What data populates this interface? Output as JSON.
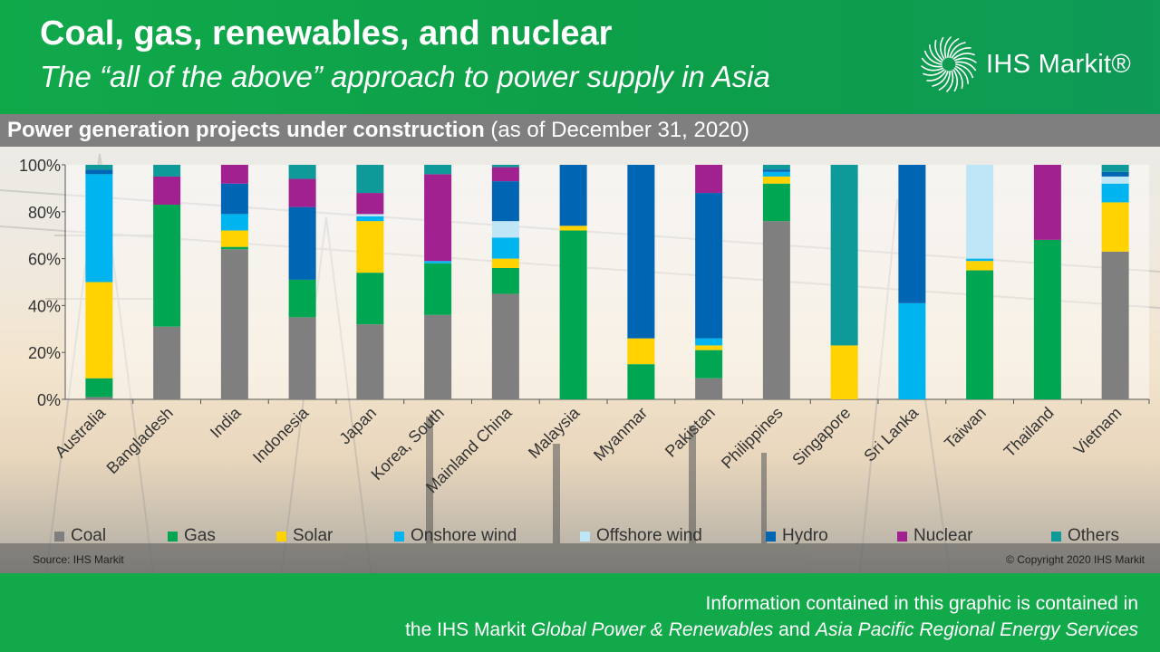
{
  "header": {
    "title": "Coal, gas, renewables, and nuclear",
    "subtitle": "The “all of the above” approach to power supply in Asia",
    "logo_text": "IHS Markit®"
  },
  "band": {
    "title_bold": "Power generation projects under construction",
    "title_rest": "(as of December 31, 2020)"
  },
  "chart_data": {
    "type": "bar",
    "stacked": true,
    "categories": [
      "Australia",
      "Bangladesh",
      "India",
      "Indonesia",
      "Japan",
      "Korea, South",
      "Mainland China",
      "Malaysia",
      "Myanmar",
      "Pakistan",
      "Philippines",
      "Singapore",
      "Sri Lanka",
      "Taiwan",
      "Thailand",
      "Vietnam"
    ],
    "series": [
      {
        "name": "Coal",
        "color": "#7f7f7f",
        "values": [
          1,
          31,
          64,
          35,
          32,
          36,
          45,
          0,
          0,
          9,
          76,
          0,
          0,
          0,
          0,
          63
        ]
      },
      {
        "name": "Gas",
        "color": "#00a651",
        "values": [
          8,
          52,
          1,
          16,
          22,
          22,
          11,
          72,
          15,
          12,
          16,
          0,
          0,
          55,
          68,
          0
        ]
      },
      {
        "name": "Solar",
        "color": "#ffd200",
        "values": [
          41,
          0,
          7,
          0,
          22,
          0,
          4,
          2,
          11,
          2,
          3,
          23,
          0,
          4,
          0,
          21
        ]
      },
      {
        "name": "Onshore wind",
        "color": "#00b5ef",
        "values": [
          46,
          0,
          7,
          0,
          2,
          1,
          9,
          0,
          0,
          3,
          2,
          0,
          41,
          1,
          0,
          8
        ]
      },
      {
        "name": "Offshore wind",
        "color": "#bfe6f7",
        "values": [
          0,
          0,
          0,
          0,
          1,
          0,
          7,
          0,
          0,
          0,
          0,
          0,
          0,
          40,
          0,
          3
        ]
      },
      {
        "name": "Hydro",
        "color": "#0066b3",
        "values": [
          2,
          0,
          13,
          31,
          0,
          0,
          17,
          26,
          74,
          62,
          1,
          0,
          59,
          0,
          0,
          2
        ]
      },
      {
        "name": "Nuclear",
        "color": "#a0218f",
        "values": [
          0,
          12,
          8,
          12,
          9,
          37,
          6,
          0,
          0,
          12,
          0,
          0,
          0,
          0,
          32,
          0
        ]
      },
      {
        "name": "Others",
        "color": "#0f9a9a",
        "values": [
          2,
          5,
          0,
          6,
          12,
          4,
          1,
          0,
          0,
          0,
          2,
          77,
          0,
          0,
          0,
          3
        ]
      }
    ],
    "y_ticks": [
      "0%",
      "20%",
      "40%",
      "60%",
      "80%",
      "100%"
    ],
    "ylim": [
      0,
      100
    ],
    "legend_position": "bottom"
  },
  "source": "Source: IHS Markit",
  "copyright": "© Copyright  2020 IHS Markit",
  "footer": {
    "line1": "Information contained in this graphic is contained in",
    "line2_a": "the IHS Markit ",
    "line2_b": "Global Power & Renewables",
    "line2_c": " and ",
    "line2_d": "Asia Pacific Regional Energy Services"
  },
  "colors": {
    "header_green": "#10a94a",
    "band_gray": "#7f7f7f"
  }
}
